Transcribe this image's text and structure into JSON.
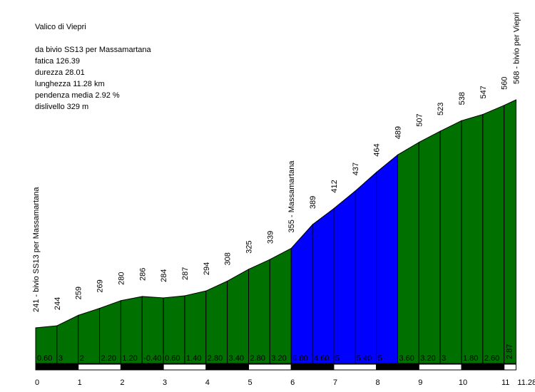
{
  "chart_data": {
    "type": "area",
    "title": "Valico di Viepri",
    "stats": [
      "da bivio SS13 per Massamartana",
      "fatica 126.39",
      "durezza 28.01",
      "lunghezza 11.28 km",
      "pendenza media 2.92 %",
      "dislivello 329 m"
    ],
    "xlabel": "",
    "ylabel": "",
    "x_ticks": [
      "0",
      "1",
      "2",
      "3",
      "4",
      "5",
      "6",
      "7",
      "8",
      "9",
      "10",
      "11",
      "11.28"
    ],
    "xlim": [
      0,
      11.28
    ],
    "ylim": [
      200,
      580
    ],
    "elevation_labels": [
      "241 - bivio SS13 per Massamartana",
      "244",
      "259",
      "269",
      "280",
      "286",
      "284",
      "287",
      "294",
      "308",
      "325",
      "339",
      "355 - Massamartana",
      "389",
      "412",
      "437",
      "464",
      "489",
      "507",
      "523",
      "538",
      "547",
      "560",
      "568 - bivio per Viepri"
    ],
    "x": [
      0,
      0.5,
      1,
      1.5,
      2,
      2.5,
      3,
      3.5,
      4,
      4.5,
      5,
      5.5,
      6,
      6.5,
      7,
      7.5,
      8,
      8.5,
      9,
      9.5,
      10,
      10.5,
      11,
      11.28
    ],
    "elevation": [
      241,
      244,
      259,
      269,
      280,
      286,
      284,
      287,
      294,
      308,
      325,
      339,
      355,
      389,
      412,
      437,
      464,
      489,
      507,
      523,
      538,
      547,
      560,
      568
    ],
    "gradient_labels": [
      "0.60",
      "3",
      "2",
      "2.20",
      "1.20",
      "-0.40",
      "0.60",
      "1.40",
      "2.80",
      "3.40",
      "2.80",
      "3.20",
      "6.80",
      "4.60",
      "5",
      "5.40",
      "5",
      "3.60",
      "3.20",
      "3",
      "1.80",
      "2.60",
      "2.87"
    ],
    "highlight_range": [
      6,
      8.5
    ],
    "colors": {
      "normal": "#007000",
      "highlight": "#0000ff",
      "line": "#000000"
    }
  }
}
